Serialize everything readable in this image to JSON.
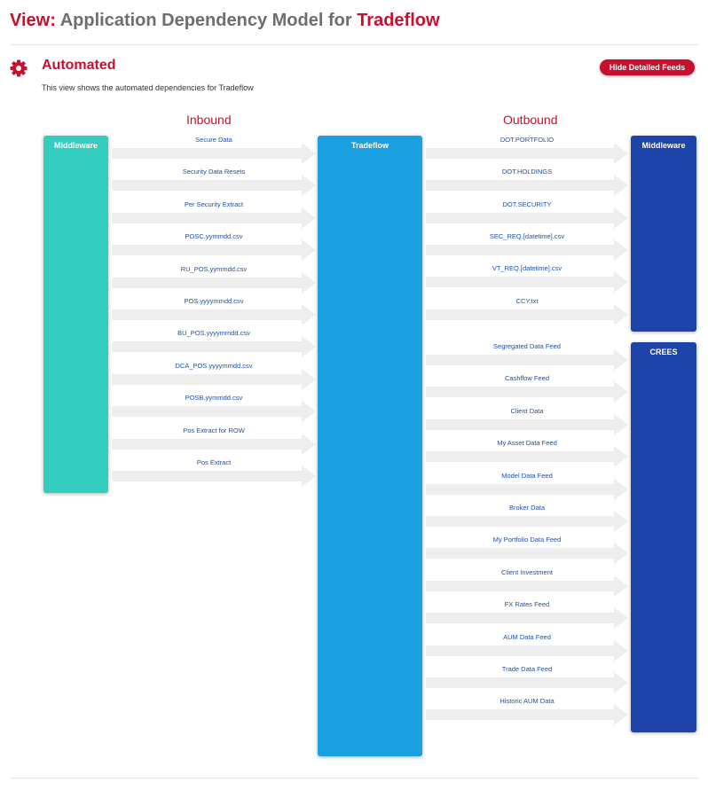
{
  "view_title": {
    "prefix": "View:",
    "middle": "Application Dependency Model for",
    "app": "Tradeflow"
  },
  "section": {
    "title": "Automated",
    "description": "This view shows the automated dependencies for Tradeflow",
    "toggle_label": "Hide Detailed Feeds",
    "icon": "gear-icon"
  },
  "columns": {
    "inbound": "Inbound",
    "outbound": "Outbound"
  },
  "colors": {
    "accent": "#c8102e",
    "inbound_system": "#34cec0",
    "center_system": "#1ba1e2",
    "outbound_system": "#1e44a9",
    "arrow": "#eeeeee",
    "feed_text": "#1f4fa8"
  },
  "systems": {
    "inbound_middleware": "Middleware",
    "center": "Tradeflow",
    "outbound_middleware": "Middleware",
    "outbound_crees": "CREES"
  },
  "inbound_feeds": [
    "Secure Data",
    "Security Data Resets",
    "Per Security Extract",
    "POSC.yymmdd.csv",
    "RU_POS.yymmdd.csv",
    "POS.yyyymmdd.csv",
    "BU_POS.yyyymmdd.csv",
    "DCA_POS.yyyymmdd.csv",
    "POSB.yymmdd.csv",
    "Pos Extract for ROW",
    "Pos Extract"
  ],
  "outbound_middleware_feeds": [
    "DOT.PORTFOLIO",
    "DOT.HOLDINGS",
    "DOT.SECURITY",
    "SEC_REQ.[datetime].csv",
    "VT_REQ.[datetime].csv",
    "CCY.txt"
  ],
  "outbound_crees_feeds": [
    "Segregated Data Feed",
    "Cashflow Feed",
    "Client Data",
    "My Asset Data Feed",
    "Model Data Feed",
    "Broker Data",
    "My Portfolio Data Feed",
    "Client Investment",
    "FX Rates Feed",
    "AUM Data Feed",
    "Trade Data Feed",
    "Historic AUM Data"
  ]
}
